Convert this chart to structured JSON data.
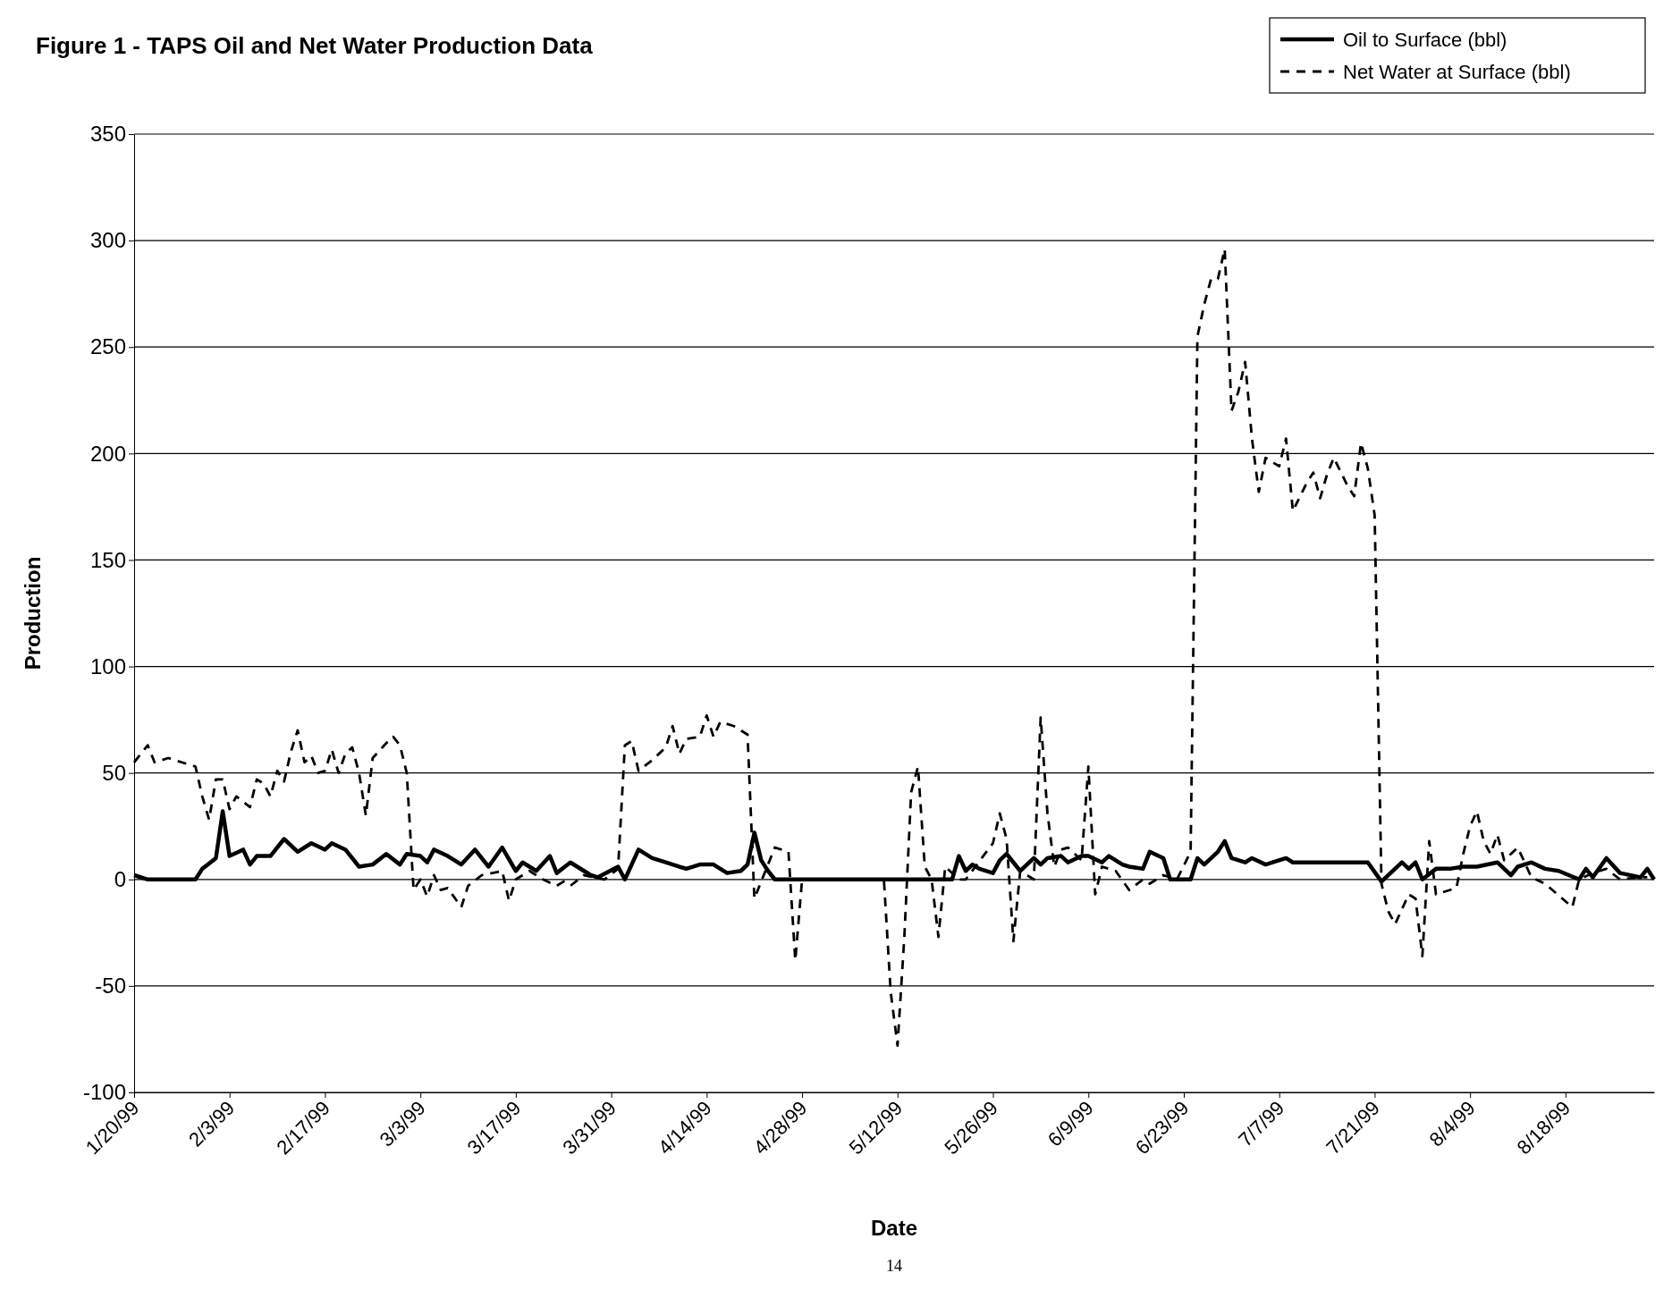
{
  "chart_data": {
    "type": "line",
    "title": "Figure 1 - TAPS Oil and Net Water Production Data",
    "xlabel": "Date",
    "ylabel": "Production",
    "annotations": [
      "14"
    ],
    "xlim": [
      "1999-01-20",
      "1999-08-31"
    ],
    "xticks": [
      {
        "value": "1999-01-20",
        "label": "1/20/99"
      },
      {
        "value": "1999-02-03",
        "label": "2/3/99"
      },
      {
        "value": "1999-02-17",
        "label": "2/17/99"
      },
      {
        "value": "1999-03-03",
        "label": "3/3/99"
      },
      {
        "value": "1999-03-17",
        "label": "3/17/99"
      },
      {
        "value": "1999-03-31",
        "label": "3/31/99"
      },
      {
        "value": "1999-04-14",
        "label": "4/14/99"
      },
      {
        "value": "1999-04-28",
        "label": "4/28/99"
      },
      {
        "value": "1999-05-12",
        "label": "5/12/99"
      },
      {
        "value": "1999-05-26",
        "label": "5/26/99"
      },
      {
        "value": "1999-06-09",
        "label": "6/9/99"
      },
      {
        "value": "1999-06-23",
        "label": "6/23/99"
      },
      {
        "value": "1999-07-07",
        "label": "7/7/99"
      },
      {
        "value": "1999-07-21",
        "label": "7/21/99"
      },
      {
        "value": "1999-08-04",
        "label": "8/4/99"
      },
      {
        "value": "1999-08-18",
        "label": "8/18/99"
      }
    ],
    "ylim": [
      -100,
      350
    ],
    "yticks": [
      -100,
      -50,
      0,
      50,
      100,
      150,
      200,
      250,
      300,
      350
    ],
    "grid": "y",
    "legend": "top right",
    "series": [
      {
        "name": "Oil to Surface (bbl)",
        "color": "#000000",
        "line_style": "solid",
        "x": [
          "1999-01-20",
          "1999-01-22",
          "1999-01-29",
          "1999-01-30",
          "1999-02-01",
          "1999-02-02",
          "1999-02-03",
          "1999-02-05",
          "1999-02-06",
          "1999-02-07",
          "1999-02-09",
          "1999-02-11",
          "1999-02-13",
          "1999-02-15",
          "1999-02-17",
          "1999-02-18",
          "1999-02-20",
          "1999-02-22",
          "1999-02-24",
          "1999-02-26",
          "1999-02-28",
          "1999-03-01",
          "1999-03-03",
          "1999-03-04",
          "1999-03-05",
          "1999-03-07",
          "1999-03-09",
          "1999-03-11",
          "1999-03-13",
          "1999-03-15",
          "1999-03-17",
          "1999-03-18",
          "1999-03-20",
          "1999-03-22",
          "1999-03-23",
          "1999-03-25",
          "1999-03-28",
          "1999-03-29",
          "1999-04-01",
          "1999-04-02",
          "1999-04-04",
          "1999-04-06",
          "1999-04-08",
          "1999-04-11",
          "1999-04-13",
          "1999-04-15",
          "1999-04-17",
          "1999-04-19",
          "1999-04-20",
          "1999-04-21",
          "1999-04-22",
          "1999-04-23",
          "1999-04-24",
          "1999-05-20",
          "1999-05-21",
          "1999-05-22",
          "1999-05-23",
          "1999-05-24",
          "1999-05-26",
          "1999-05-27",
          "1999-05-28",
          "1999-05-29",
          "1999-05-30",
          "1999-06-01",
          "1999-06-02",
          "1999-06-03",
          "1999-06-05",
          "1999-06-06",
          "1999-06-08",
          "1999-06-09",
          "1999-06-11",
          "1999-06-12",
          "1999-06-14",
          "1999-06-15",
          "1999-06-17",
          "1999-06-18",
          "1999-06-20",
          "1999-06-21",
          "1999-06-24",
          "1999-06-25",
          "1999-06-26",
          "1999-06-28",
          "1999-06-29",
          "1999-06-30",
          "1999-07-02",
          "1999-07-03",
          "1999-07-05",
          "1999-07-08",
          "1999-07-09",
          "1999-07-20",
          "1999-07-22",
          "1999-07-25",
          "1999-07-26",
          "1999-07-27",
          "1999-07-28",
          "1999-07-30",
          "1999-08-01",
          "1999-08-03",
          "1999-08-05",
          "1999-08-08",
          "1999-08-10",
          "1999-08-11",
          "1999-08-13",
          "1999-08-15",
          "1999-08-17",
          "1999-08-20",
          "1999-08-21",
          "1999-08-22",
          "1999-08-24",
          "1999-08-26",
          "1999-08-29",
          "1999-08-30",
          "1999-08-31"
        ],
        "values": [
          2,
          0,
          0,
          5,
          10,
          32,
          11,
          14,
          7,
          11,
          11,
          19,
          13,
          17,
          14,
          17,
          14,
          6,
          7,
          12,
          7,
          12,
          11,
          8,
          14,
          11,
          7,
          14,
          6,
          15,
          4,
          8,
          4,
          11,
          3,
          8,
          2,
          1,
          6,
          0,
          14,
          10,
          8,
          5,
          7,
          7,
          3,
          4,
          7,
          22,
          9,
          4,
          0,
          0,
          11,
          4,
          7,
          5,
          3,
          9,
          12,
          8,
          4,
          10,
          7,
          10,
          11,
          8,
          11,
          11,
          8,
          11,
          7,
          6,
          5,
          13,
          10,
          0,
          0,
          10,
          7,
          13,
          18,
          10,
          8,
          10,
          7,
          10,
          8,
          8,
          -1,
          8,
          5,
          8,
          0,
          5,
          5,
          6,
          6,
          8,
          2,
          6,
          8,
          5,
          4,
          0,
          5,
          1,
          10,
          3,
          1,
          5,
          0
        ]
      },
      {
        "name": "Net Water at Surface (bbl)",
        "color": "#000000",
        "line_style": "dashed",
        "x": [
          "1999-01-20",
          "1999-01-22",
          "1999-01-23",
          "1999-01-25",
          "1999-01-29",
          "1999-01-30",
          "1999-01-31",
          "1999-02-01",
          "1999-02-02",
          "1999-02-03",
          "1999-02-04",
          "1999-02-06",
          "1999-02-07",
          "1999-02-08",
          "1999-02-09",
          "1999-02-10",
          "1999-02-11",
          "1999-02-12",
          "1999-02-13",
          "1999-02-14",
          "1999-02-15",
          "1999-02-16",
          "1999-02-17",
          "1999-02-18",
          "1999-02-19",
          "1999-02-20",
          "1999-02-21",
          "1999-02-22",
          "1999-02-23",
          "1999-02-24",
          "1999-02-26",
          "1999-02-27",
          "1999-02-28",
          "1999-03-01",
          "1999-03-02",
          "1999-03-03",
          "1999-03-04",
          "1999-03-05",
          "1999-03-06",
          "1999-03-07",
          "1999-03-09",
          "1999-03-10",
          "1999-03-12",
          "1999-03-15",
          "1999-03-16",
          "1999-03-17",
          "1999-03-19",
          "1999-03-21",
          "1999-03-23",
          "1999-03-24",
          "1999-03-25",
          "1999-03-27",
          "1999-03-30",
          "1999-04-01",
          "1999-04-02",
          "1999-04-03",
          "1999-04-04",
          "1999-04-06",
          "1999-04-08",
          "1999-04-09",
          "1999-04-10",
          "1999-04-11",
          "1999-04-13",
          "1999-04-14",
          "1999-04-15",
          "1999-04-16",
          "1999-04-18",
          "1999-04-20",
          "1999-04-21",
          "1999-04-24",
          "1999-04-26",
          "1999-04-27",
          "1999-04-28",
          "1999-05-10",
          "1999-05-11",
          "1999-05-12",
          "1999-05-13",
          "1999-05-14",
          "1999-05-15",
          "1999-05-16",
          "1999-05-17",
          "1999-05-18",
          "1999-05-19",
          "1999-05-21",
          "1999-05-22",
          "1999-05-26",
          "1999-05-27",
          "1999-05-28",
          "1999-05-29",
          "1999-05-30",
          "1999-05-31",
          "1999-06-01",
          "1999-06-02",
          "1999-06-03",
          "1999-06-04",
          "1999-06-05",
          "1999-06-06",
          "1999-06-08",
          "1999-06-09",
          "1999-06-10",
          "1999-06-11",
          "1999-06-13",
          "1999-06-15",
          "1999-06-17",
          "1999-06-18",
          "1999-06-20",
          "1999-06-22",
          "1999-06-24",
          "1999-06-25",
          "1999-06-26",
          "1999-06-27",
          "1999-06-28",
          "1999-06-29",
          "1999-06-30",
          "1999-07-01",
          "1999-07-02",
          "1999-07-03",
          "1999-07-04",
          "1999-07-05",
          "1999-07-07",
          "1999-07-08",
          "1999-07-09",
          "1999-07-11",
          "1999-07-12",
          "1999-07-13",
          "1999-07-14",
          "1999-07-15",
          "1999-07-17",
          "1999-07-18",
          "1999-07-19",
          "1999-07-20",
          "1999-07-21",
          "1999-07-22",
          "1999-07-23",
          "1999-07-24",
          "1999-07-26",
          "1999-07-27",
          "1999-07-28",
          "1999-07-29",
          "1999-07-30",
          "1999-08-02",
          "1999-08-03",
          "1999-08-04",
          "1999-08-05",
          "1999-08-06",
          "1999-08-07",
          "1999-08-08",
          "1999-08-09",
          "1999-08-11",
          "1999-08-13",
          "1999-08-15",
          "1999-08-19",
          "1999-08-20",
          "1999-08-22",
          "1999-08-24",
          "1999-08-26",
          "1999-08-29",
          "1999-08-30"
        ],
        "values": [
          55,
          63,
          55,
          57,
          53,
          39,
          28,
          47,
          47,
          33,
          39,
          34,
          47,
          45,
          39,
          51,
          46,
          60,
          70,
          55,
          58,
          50,
          51,
          61,
          50,
          59,
          62,
          50,
          30,
          57,
          64,
          67,
          63,
          50,
          -5,
          0,
          -8,
          2,
          -5,
          -4,
          -13,
          -3,
          2,
          4,
          -10,
          0,
          4,
          0,
          -3,
          -1,
          -3,
          2,
          0,
          5,
          63,
          65,
          51,
          56,
          62,
          72,
          59,
          66,
          67,
          77,
          67,
          74,
          72,
          68,
          -9,
          15,
          13,
          -38,
          0,
          0,
          -53,
          -78,
          -27,
          41,
          53,
          6,
          0,
          -27,
          6,
          0,
          0,
          17,
          31,
          19,
          -29,
          4,
          2,
          0,
          76,
          31,
          6,
          14,
          15,
          9,
          53,
          -7,
          6,
          4,
          -5,
          0,
          -2,
          2,
          0,
          13,
          255,
          270,
          282,
          282,
          296,
          220,
          229,
          243,
          207,
          182,
          198,
          194,
          207,
          173,
          186,
          191,
          179,
          190,
          198,
          185,
          180,
          205,
          193,
          171,
          -2,
          -15,
          -21,
          -7,
          -9,
          -36,
          18,
          -7,
          -4,
          12,
          25,
          32,
          18,
          12,
          21,
          9,
          15,
          1,
          -2,
          -13,
          0,
          3,
          5,
          0,
          1,
          1
        ]
      }
    ]
  }
}
